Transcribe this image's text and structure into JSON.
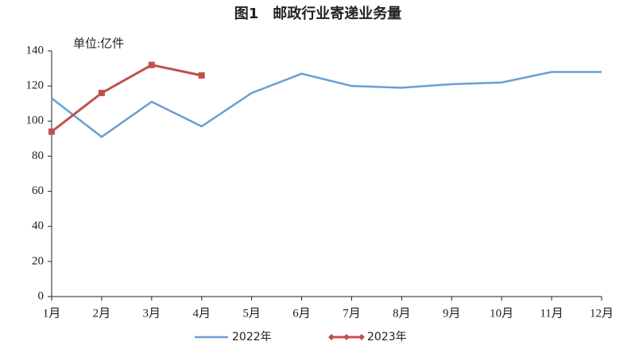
{
  "chart_data": {
    "type": "line",
    "title": "图1　邮政行业寄递业务量",
    "unit_label": "单位:亿件",
    "categories": [
      "1月",
      "2月",
      "3月",
      "4月",
      "5月",
      "6月",
      "7月",
      "8月",
      "9月",
      "10月",
      "11月",
      "12月"
    ],
    "series": [
      {
        "name": "2022年",
        "color": "#6a9fd2",
        "marker": false,
        "values": [
          113,
          91,
          111,
          97,
          116,
          127,
          120,
          119,
          121,
          122,
          128,
          128
        ]
      },
      {
        "name": "2023年",
        "color": "#c0504d",
        "marker": true,
        "values": [
          94,
          116,
          132,
          126,
          null,
          null,
          null,
          null,
          null,
          null,
          null,
          null
        ]
      }
    ],
    "ylim": [
      0,
      140
    ],
    "yticks": [
      0,
      20,
      40,
      60,
      80,
      100,
      120,
      140
    ],
    "grid": false,
    "legend": "bottom"
  }
}
